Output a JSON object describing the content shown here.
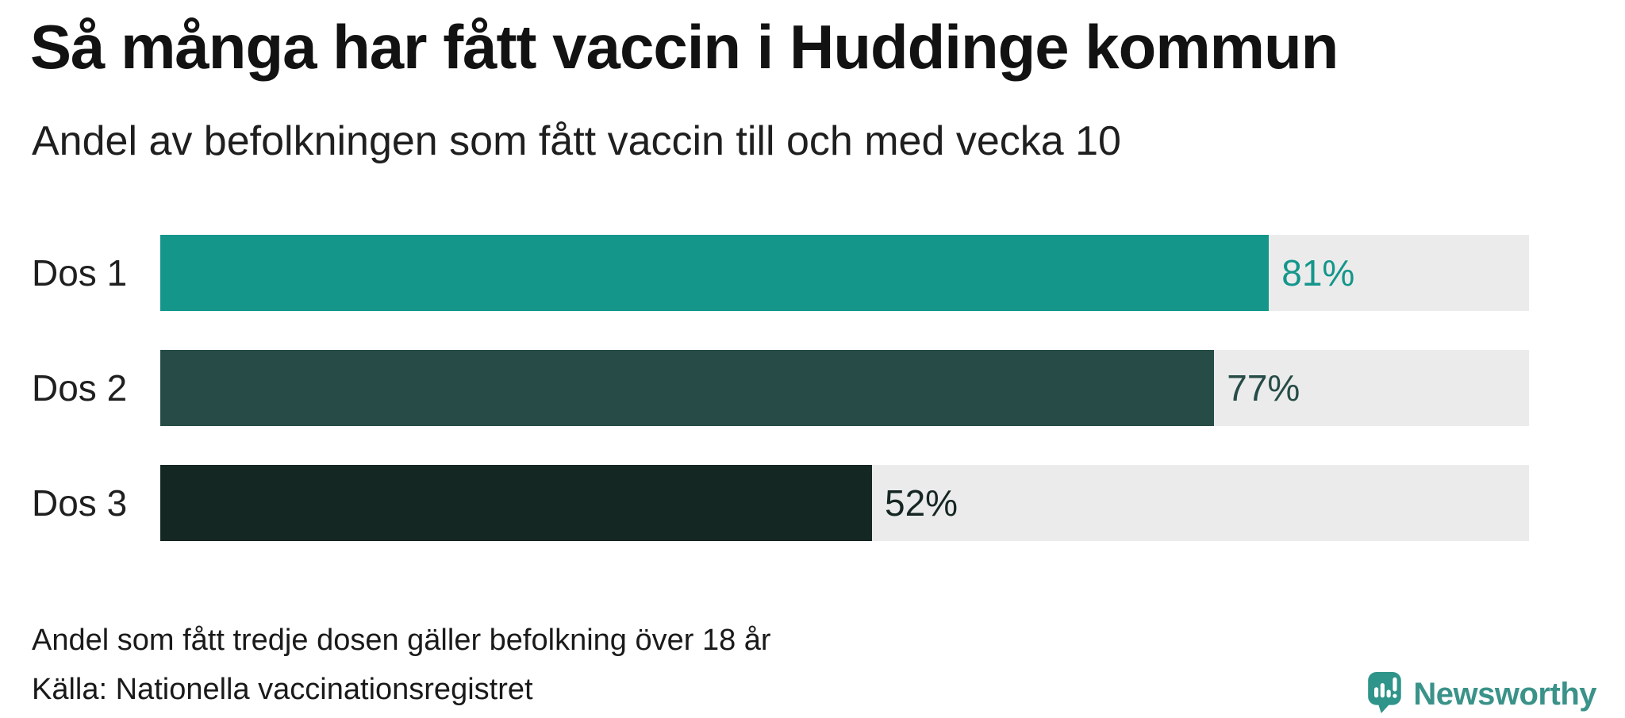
{
  "header": {
    "title": "Så många har fått vaccin i Huddinge kommun",
    "subtitle": "Andel av befolkningen som fått vaccin till och med vecka 10"
  },
  "chart_data": {
    "type": "bar",
    "orientation": "horizontal",
    "title": "Så många har fått vaccin i Huddinge kommun",
    "subtitle": "Andel av befolkningen som fått vaccin till och med vecka 10",
    "categories": [
      "Dos 1",
      "Dos 2",
      "Dos 3"
    ],
    "values": [
      81,
      77,
      52
    ],
    "value_labels": [
      "81%",
      "77%",
      "52%"
    ],
    "xlim": [
      0,
      100
    ],
    "unit": "percent",
    "grid": false,
    "bar_colors": [
      "#14968b",
      "#274c47",
      "#152723"
    ],
    "value_label_colors": [
      "#14968b",
      "#274c47",
      "#152723"
    ],
    "track_color": "#ebebeb"
  },
  "footer": {
    "note": "Andel som fått tredje dosen gäller befolkning över 18 år",
    "source": "Källa: Nationella vaccinationsregistret",
    "brand": "Newsworthy"
  },
  "colors": {
    "background": "#ffffff",
    "title_text": "#121212",
    "body_text": "#1a1a1a",
    "brand_teal": "#3a9289",
    "logo_teal": "#2f948a"
  }
}
